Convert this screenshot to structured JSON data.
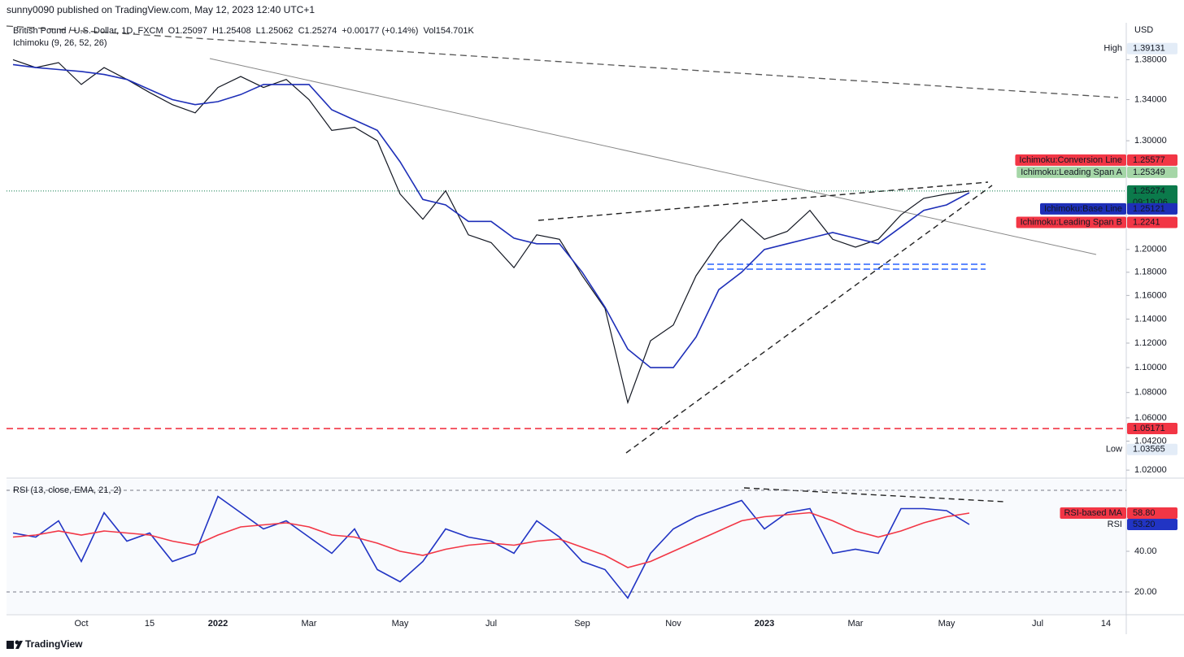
{
  "header": {
    "publisher": "sunny0090 published on TradingView.com, May 12, 2023 12:40 UTC+1",
    "brand": "TradingView"
  },
  "chart_data": [
    {
      "type": "line",
      "legend": [
        "British Pound / U.S. Dollar, 1D, FXCM",
        "O1.25097",
        "H1.25408",
        "L1.25062",
        "C1.25274",
        "+0.00177 (+0.14%)",
        "Vol154.701K"
      ],
      "indicator": "Ichimoku (9, 26, 52, 26)",
      "currency": "USD",
      "categories": [
        null,
        null,
        null,
        "Oct",
        null,
        null,
        "15",
        null,
        null,
        "2022",
        null,
        null,
        null,
        "Mar",
        null,
        null,
        null,
        "May",
        null,
        null,
        null,
        "Jul",
        null,
        null,
        null,
        "Sep",
        null,
        null,
        null,
        "Nov",
        null,
        null,
        null,
        "2023",
        null,
        null,
        null,
        "Mar",
        null,
        null,
        null,
        "May",
        null,
        null,
        null,
        "Jul",
        null,
        null,
        "14"
      ],
      "log_scale": true,
      "grid": false,
      "ylim": [
        1.014,
        1.418
      ],
      "yticks": [
        {
          "value": 1.02,
          "label": "1.02000"
        },
        {
          "value": 1.042,
          "label": "1.04200"
        },
        {
          "value": 1.06,
          "label": "1.06000"
        },
        {
          "value": 1.08,
          "label": "1.08000"
        },
        {
          "value": 1.1,
          "label": "1.10000"
        },
        {
          "value": 1.12,
          "label": "1.12000"
        },
        {
          "value": 1.14,
          "label": "1.14000"
        },
        {
          "value": 1.16,
          "label": "1.16000"
        },
        {
          "value": 1.18,
          "label": "1.18000"
        },
        {
          "value": 1.2,
          "label": "1.20000"
        },
        {
          "value": 1.3,
          "label": "1.30000"
        },
        {
          "value": 1.34,
          "label": "1.34000"
        },
        {
          "value": 1.38,
          "label": "1.38000"
        }
      ],
      "series": [
        {
          "color": "#131722",
          "values": [
            1.38,
            1.372,
            1.377,
            1.355,
            1.372,
            1.36,
            1.347,
            1.335,
            1.327,
            1.352,
            1.363,
            1.352,
            1.36,
            1.34,
            1.31,
            1.313,
            1.3,
            1.25,
            1.227,
            1.253,
            1.213,
            1.206,
            1.184,
            1.213,
            1.209,
            1.177,
            1.149,
            1.072,
            1.122,
            1.135,
            1.177,
            1.206,
            1.227,
            1.209,
            1.216,
            1.235,
            1.209,
            1.202,
            1.209,
            1.231,
            1.246,
            1.25,
            1.25274,
            null,
            null,
            null,
            null,
            null,
            null
          ]
        },
        {
          "color": "#1e2fb8",
          "values": [
            1.375,
            1.372,
            1.37,
            1.368,
            1.365,
            1.36,
            1.35,
            1.34,
            1.335,
            1.338,
            1.345,
            1.355,
            1.355,
            1.355,
            1.33,
            1.32,
            1.31,
            1.28,
            1.245,
            1.24,
            1.225,
            1.225,
            1.21,
            1.205,
            1.205,
            1.18,
            1.15,
            1.115,
            1.1,
            1.1,
            1.125,
            1.165,
            1.18,
            1.2,
            1.205,
            1.21,
            1.215,
            1.21,
            1.205,
            1.22,
            1.235,
            1.24,
            1.25121,
            null,
            null,
            null,
            null,
            null,
            null
          ]
        }
      ],
      "tags": [
        {
          "label": "High",
          "value": 1.39131,
          "color": "#e3ecf7",
          "text_color": "#131722"
        },
        {
          "label": "Ichimoku:Conversion Line",
          "value": 1.25577,
          "color": "#f23645",
          "text_color": "#ffffff"
        },
        {
          "label": "Ichimoku:Leading Span A",
          "value": 1.25349,
          "color": "#a5d6a7",
          "text_color": "#131722"
        },
        {
          "value": 1.25274,
          "countdown": "09:19:06",
          "color": "#0b7a4b",
          "text_color": "#ffffff",
          "line": "dotted",
          "current": true
        },
        {
          "label": "Ichimoku:Base Line",
          "value": 1.25121,
          "color": "#1e2fb8",
          "text_color": "#ffffff"
        },
        {
          "label": "Ichimoku:Leading Span B",
          "value": 1.2241,
          "color": "#f23645",
          "text_color": "#ffffff"
        },
        {
          "value": 1.05171,
          "color": "#f23645",
          "text_color": "#ffffff",
          "line": "dashed"
        },
        {
          "label": "Low",
          "value": 1.03565,
          "color": "#e3ecf7",
          "text_color": "#131722"
        }
      ]
    },
    {
      "type": "line",
      "title": "RSI (13, close, EMA, 21, 2)",
      "ylim": [
        9.2,
        75.2
      ],
      "yticks": [
        {
          "value": 20,
          "label": "20.00"
        },
        {
          "value": 40,
          "label": "40.00"
        }
      ],
      "bands": [
        70,
        20
      ],
      "series": [
        {
          "color": "#2134c4",
          "values": [
            49,
            47,
            55,
            35,
            59,
            45,
            49,
            35,
            39,
            67,
            59,
            51,
            55,
            47,
            39,
            51,
            31,
            25,
            35,
            51,
            47,
            45,
            39,
            55,
            47,
            35,
            31,
            17,
            39,
            51,
            57,
            61,
            65,
            51,
            59,
            61,
            39,
            41,
            39,
            61,
            61,
            60,
            53.2,
            null,
            null,
            null,
            null,
            null,
            null
          ]
        },
        {
          "color": "#f23645",
          "values": [
            47,
            48,
            50,
            48,
            50,
            49,
            48,
            45,
            43,
            48,
            52,
            53,
            54,
            52,
            48,
            47,
            44,
            40,
            38,
            41,
            43,
            44,
            43,
            45,
            46,
            42,
            38,
            32,
            35,
            40,
            45,
            50,
            55,
            57,
            58,
            59,
            55,
            50,
            47,
            50,
            54,
            57,
            58.8,
            null,
            null,
            null,
            null,
            null,
            null
          ]
        }
      ],
      "tags": [
        {
          "label": "RSI-based MA",
          "value": 58.8,
          "value_label": "58.80",
          "color": "#f23645",
          "text_color": "#ffffff"
        },
        {
          "label": "RSI",
          "value": 53.2,
          "value_label": "53.20",
          "color": "#2134c4",
          "text_color": "#ffffff"
        }
      ]
    }
  ]
}
